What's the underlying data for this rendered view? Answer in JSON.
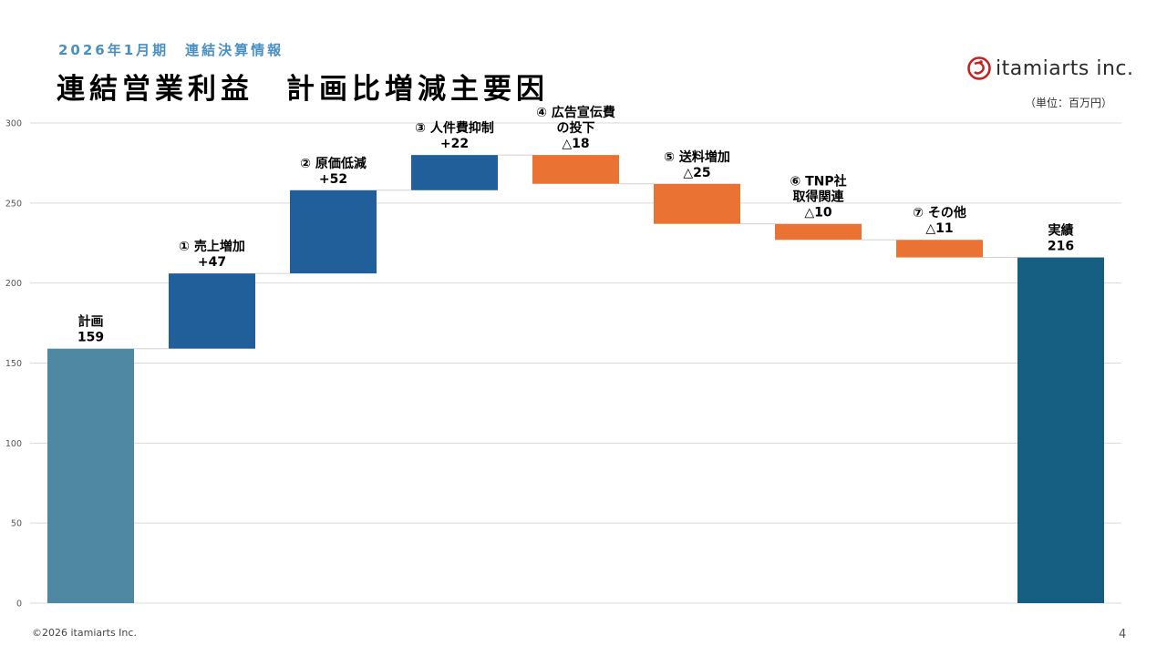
{
  "header": {
    "subtitle": "2026年1月期　連結決算情報",
    "title": "連結営業利益　計画比増減主要因",
    "unit": "（単位：百万円）"
  },
  "logo": {
    "text": "itamiarts inc.",
    "icon": "itamiarts-logo-icon",
    "color": "#c8201f"
  },
  "footer": {
    "copyright": "©2026 itamiarts Inc.",
    "page": "4"
  },
  "chart_data": {
    "type": "bar",
    "subtype": "waterfall",
    "ylim": [
      0,
      300
    ],
    "yticks": [
      0,
      50,
      100,
      150,
      200,
      250,
      300
    ],
    "grid": true,
    "categories": [
      [
        "計画"
      ],
      [
        "① 売上増加"
      ],
      [
        "② 原価低減"
      ],
      [
        "③ 人件費抑制"
      ],
      [
        "④ 広告宣伝費",
        "の投下"
      ],
      [
        "⑤ 送料増加"
      ],
      [
        "⑥ TNP社",
        "取得関連"
      ],
      [
        "⑦ その他"
      ],
      [
        "実績"
      ]
    ],
    "value_labels": [
      "159",
      "+47",
      "+52",
      "+22",
      "△18",
      "△25",
      "△10",
      "△11",
      "216"
    ],
    "values": [
      159,
      47,
      52,
      22,
      -18,
      -25,
      -10,
      -11,
      216
    ],
    "kinds": [
      "total",
      "increase",
      "increase",
      "increase",
      "decrease",
      "decrease",
      "decrease",
      "decrease",
      "total"
    ],
    "colors": {
      "plan": "#4f88a3",
      "increase": "#215f9a",
      "decrease": "#ea7232",
      "actual": "#165f83",
      "connector": "#d0d0d0",
      "grid": "#d9d9d9"
    }
  }
}
